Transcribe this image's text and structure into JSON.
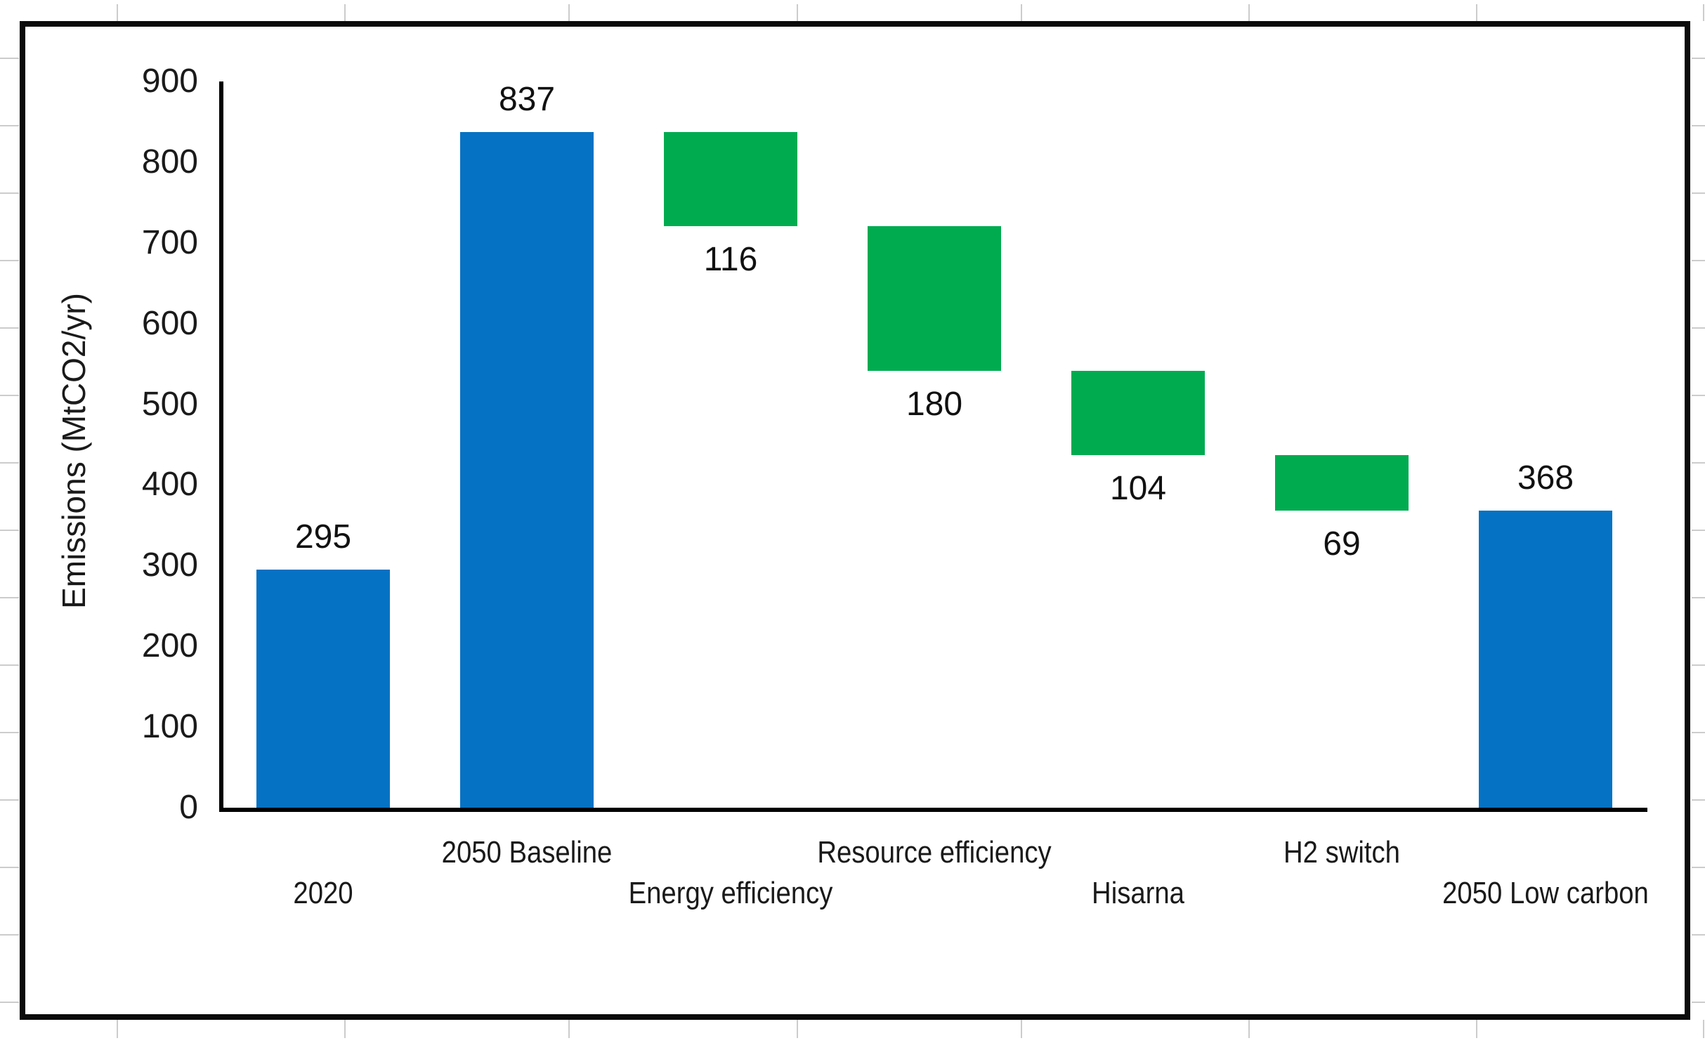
{
  "figure": {
    "background": "#ffffff",
    "border_color": "#0b0b0b"
  },
  "chart_data": {
    "type": "bar",
    "subtype": "waterfall",
    "title": "",
    "xlabel": "",
    "ylabel": "Emissions (MtCO2/yr)",
    "ylim": [
      0,
      900
    ],
    "yticks": [
      0,
      100,
      200,
      300,
      400,
      500,
      600,
      700,
      800,
      900
    ],
    "grid": "off",
    "legend": "none",
    "categories": [
      "2020",
      "2050 Baseline",
      "Energy efficiency",
      "Resource efficiency",
      "Hisarna",
      "H2 switch",
      "2050 Low carbon"
    ],
    "colors": {
      "total": "#0672c3",
      "reduction": "#00ab50"
    },
    "bars": [
      {
        "category": "2020",
        "label": "295",
        "value": 295,
        "start": 0,
        "end": 295,
        "color_role": "total",
        "label_position": "above",
        "axis_label_row": "lower"
      },
      {
        "category": "2050 Baseline",
        "label": "837",
        "value": 837,
        "start": 0,
        "end": 837,
        "color_role": "total",
        "label_position": "above",
        "axis_label_row": "upper"
      },
      {
        "category": "Energy efficiency",
        "label": "116",
        "value": 116,
        "start": 721,
        "end": 837,
        "color_role": "reduction",
        "label_position": "below",
        "axis_label_row": "lower"
      },
      {
        "category": "Resource efficiency",
        "label": "180",
        "value": 180,
        "start": 541,
        "end": 721,
        "color_role": "reduction",
        "label_position": "below",
        "axis_label_row": "upper"
      },
      {
        "category": "Hisarna",
        "label": "104",
        "value": 104,
        "start": 437,
        "end": 541,
        "color_role": "reduction",
        "label_position": "below",
        "axis_label_row": "lower"
      },
      {
        "category": "H2 switch",
        "label": "69",
        "value": 69,
        "start": 368,
        "end": 437,
        "color_role": "reduction",
        "label_position": "below",
        "axis_label_row": "upper"
      },
      {
        "category": "2050 Low carbon",
        "label": "368",
        "value": 368,
        "start": 0,
        "end": 368,
        "color_role": "total",
        "label_position": "above",
        "axis_label_row": "lower"
      }
    ]
  }
}
